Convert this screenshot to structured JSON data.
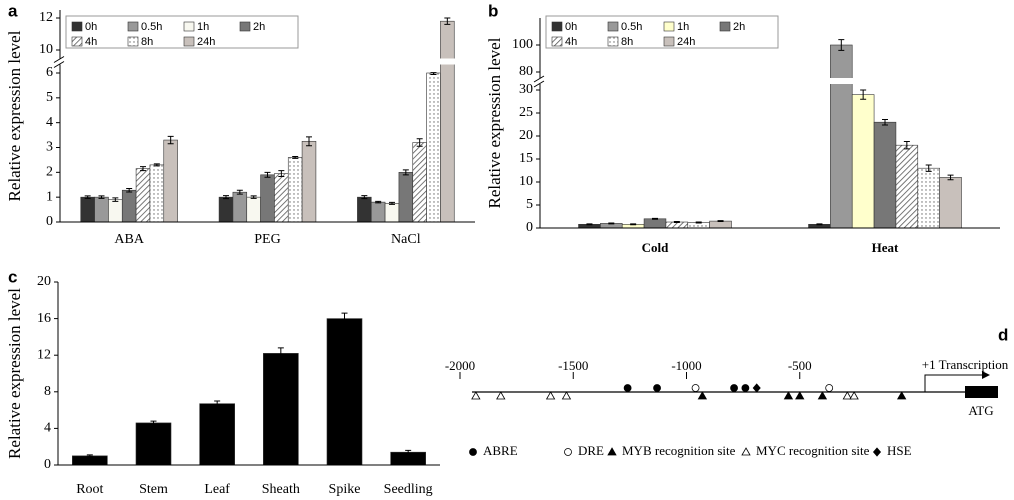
{
  "chart_data": [
    {
      "label": "a",
      "type": "bar",
      "y_label": "Relative expression level",
      "categories": [
        "ABA",
        "PEG",
        "NaCl"
      ],
      "series": [
        {
          "name": "0h",
          "color": "#333333",
          "values": [
            1.0,
            1.0,
            1.0
          ],
          "errors": [
            0.05,
            0.06,
            0.06
          ]
        },
        {
          "name": "0.5h",
          "color": "#999999",
          "values": [
            1.0,
            1.2,
            0.8
          ],
          "errors": [
            0.05,
            0.08,
            0.03
          ]
        },
        {
          "name": "1h",
          "color": "#f8f8f0",
          "values": [
            0.9,
            1.0,
            0.75
          ],
          "errors": [
            0.07,
            0.05,
            0.04
          ]
        },
        {
          "name": "2h",
          "color": "#777777",
          "values": [
            1.28,
            1.9,
            2.0
          ],
          "errors": [
            0.07,
            0.1,
            0.1
          ]
        },
        {
          "name": "4h",
          "color": "#555555",
          "pattern": "hatch",
          "values": [
            2.15,
            1.95,
            3.2
          ],
          "errors": [
            0.08,
            0.12,
            0.15
          ]
        },
        {
          "name": "8h",
          "color": "#555555",
          "pattern": "dots",
          "values": [
            2.3,
            2.6,
            6.0
          ],
          "errors": [
            0.04,
            0.04,
            0.06
          ]
        },
        {
          "name": "24h",
          "color": "#c8c0bb",
          "values": [
            3.3,
            3.25,
            11.8
          ],
          "errors": [
            0.15,
            0.18,
            0.2
          ]
        }
      ],
      "ylim": [
        0,
        12.5
      ],
      "axis_break": [
        6,
        10
      ],
      "yticks": [
        0,
        1,
        2,
        3,
        4,
        5,
        6,
        10,
        12
      ],
      "legend": "top-left"
    },
    {
      "label": "b",
      "type": "bar",
      "y_label": "Relative expression level",
      "categories": [
        "Cold",
        "Heat"
      ],
      "series": [
        {
          "name": "0h",
          "color": "#333333",
          "values": [
            0.8,
            0.8
          ],
          "errors": [
            0.1,
            0.1
          ]
        },
        {
          "name": "0.5h",
          "color": "#999999",
          "values": [
            1.0,
            100
          ],
          "errors": [
            0.1,
            4
          ]
        },
        {
          "name": "1h",
          "color": "#ffffcc",
          "values": [
            0.8,
            29
          ],
          "errors": [
            0.1,
            1
          ]
        },
        {
          "name": "2h",
          "color": "#777777",
          "values": [
            2.0,
            23
          ],
          "errors": [
            0.1,
            0.6
          ]
        },
        {
          "name": "4h",
          "color": "#555555",
          "pattern": "hatch",
          "values": [
            1.3,
            18
          ],
          "errors": [
            0.1,
            0.8
          ]
        },
        {
          "name": "8h",
          "color": "#555555",
          "pattern": "dots",
          "values": [
            1.2,
            13
          ],
          "errors": [
            0.1,
            0.7
          ]
        },
        {
          "name": "24h",
          "color": "#c8c0bb",
          "values": [
            1.5,
            11
          ],
          "errors": [
            0.1,
            0.5
          ]
        }
      ],
      "ylim": [
        0,
        120
      ],
      "axis_break": [
        30,
        80
      ],
      "yticks": [
        0,
        5,
        10,
        15,
        20,
        25,
        30,
        80,
        100
      ],
      "legend": "top-left"
    },
    {
      "label": "c",
      "type": "bar",
      "y_label": "Relative expression level",
      "categories": [
        "Root",
        "Stem",
        "Leaf",
        "Sheath",
        "Spike",
        "Seedling"
      ],
      "values": [
        1.0,
        4.6,
        6.7,
        12.2,
        16.0,
        1.4
      ],
      "errors": [
        0.1,
        0.2,
        0.3,
        0.6,
        0.6,
        0.2
      ],
      "color": "#000000",
      "ylim": [
        0,
        20
      ],
      "yticks": [
        0,
        4,
        8,
        12,
        16,
        20
      ]
    }
  ],
  "promoter_map": {
    "label": "d",
    "xlim": [
      -2000,
      0
    ],
    "ticks": [
      -2000,
      -1500,
      -1000,
      -500
    ],
    "tss_label": "+1 Transcription",
    "start_label": "ATG",
    "legend": [
      {
        "name": "ABRE",
        "symbol": "filled-circle"
      },
      {
        "name": "DRE",
        "symbol": "open-circle"
      },
      {
        "name": "MYB recognition site",
        "symbol": "filled-triangle"
      },
      {
        "name": "MYC recognition site",
        "symbol": "open-triangle"
      },
      {
        "name": "HSE",
        "symbol": "filled-diamond"
      }
    ],
    "sites": [
      {
        "type": "ABRE",
        "position": -1260
      },
      {
        "type": "ABRE",
        "position": -1130
      },
      {
        "type": "ABRE",
        "position": -790
      },
      {
        "type": "ABRE",
        "position": -740
      },
      {
        "type": "DRE",
        "position": -960
      },
      {
        "type": "DRE",
        "position": -370
      },
      {
        "type": "HSE",
        "position": -690
      },
      {
        "type": "MYC recognition site",
        "position": -1930
      },
      {
        "type": "MYC recognition site",
        "position": -1820
      },
      {
        "type": "MYC recognition site",
        "position": -1600
      },
      {
        "type": "MYC recognition site",
        "position": -1530
      },
      {
        "type": "MYC recognition site",
        "position": -290
      },
      {
        "type": "MYC recognition site",
        "position": -260
      },
      {
        "type": "MYB recognition site",
        "position": -930
      },
      {
        "type": "MYB recognition site",
        "position": -550
      },
      {
        "type": "MYB recognition site",
        "position": -500
      },
      {
        "type": "MYB recognition site",
        "position": -400
      },
      {
        "type": "MYB recognition site",
        "position": -50
      }
    ]
  }
}
